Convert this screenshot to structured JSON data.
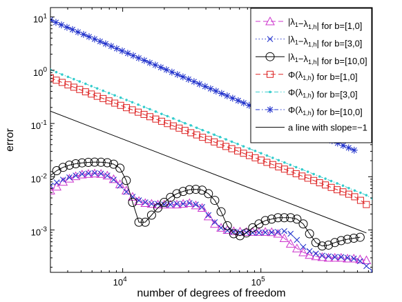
{
  "chart_data": {
    "type": "line",
    "title": "",
    "xlabel": "number of degrees of freedom",
    "ylabel": "error",
    "xscale": "log",
    "yscale": "log",
    "xlim": [
      3000,
      640000
    ],
    "ylim": [
      0.00016,
      15
    ],
    "x_ticks": [
      {
        "value": 10000,
        "base": "10",
        "exp": "4"
      },
      {
        "value": 100000,
        "base": "10",
        "exp": "5"
      }
    ],
    "y_ticks": [
      {
        "value": 0.001,
        "base": "10",
        "exp": "-3"
      },
      {
        "value": 0.01,
        "base": "10",
        "exp": "-2"
      },
      {
        "value": 0.1,
        "base": "10",
        "exp": "-1"
      },
      {
        "value": 1,
        "base": "10",
        "exp": "0"
      },
      {
        "value": 10,
        "base": "10",
        "exp": "1"
      }
    ],
    "grid": false,
    "legend_position": "top-right",
    "series": [
      {
        "name": "|λ1−λ1,h| for b=[1,0]",
        "label": {
          "pre": "|λ",
          "s1": "1",
          "mid": "−λ",
          "s2": "1,h",
          "post": "| for b=[1,0]"
        },
        "color": "#cc33cc",
        "marker": "triangle",
        "line": "dashed",
        "x": [
          3000,
          3333,
          3704,
          4115,
          4572,
          5080,
          5644,
          6271,
          6967,
          7741,
          8601,
          9556,
          10617,
          11796,
          13106,
          14561,
          16178,
          17975,
          19971,
          22188,
          24652,
          27389,
          30430,
          33809,
          37563,
          41734,
          46368,
          51516,
          57237,
          63592,
          70653,
          78498,
          87214,
          96898,
          107657,
          119611,
          132892,
          147648,
          164042,
          182256,
          202494,
          224978,
          249958,
          277712,
          308549,
          342810,
          380874,
          423166,
          470153,
          522357,
          580357
        ],
        "y": [
          0.0055,
          0.0065,
          0.008,
          0.0092,
          0.0102,
          0.011,
          0.0113,
          0.0115,
          0.0113,
          0.0105,
          0.009,
          0.0072,
          0.0055,
          0.0042,
          0.0035,
          0.0032,
          0.0031,
          0.003,
          0.003,
          0.003,
          0.003,
          0.0031,
          0.0032,
          0.0029,
          0.0026,
          0.0018,
          0.0013,
          0.0011,
          0.001,
          0.00095,
          0.00093,
          0.00092,
          0.00092,
          0.00092,
          0.00092,
          0.00091,
          0.00085,
          0.0007,
          0.00055,
          0.00045,
          0.00038,
          0.00034,
          0.00032,
          0.00031,
          0.0003,
          0.0003,
          0.0003,
          0.00029,
          0.00029,
          0.00028,
          0.00027
        ]
      },
      {
        "name": "|λ1−λ1,h| for b=[3,0]",
        "label": {
          "pre": "|λ",
          "s1": "1",
          "mid": "−λ",
          "s2": "1,h",
          "post": "| for b=[3,0]"
        },
        "color": "#2233cc",
        "marker": "x",
        "line": "dotted",
        "x": [
          3000,
          3333,
          3704,
          4115,
          4572,
          5080,
          5644,
          6271,
          6967,
          7741,
          8601,
          9556,
          10617,
          11796,
          13106,
          14561,
          16178,
          17975,
          19971,
          22188,
          24652,
          27389,
          30430,
          33809,
          37563,
          41734,
          46368,
          51516,
          57237,
          63592,
          70653,
          78498,
          87214,
          96898,
          107657,
          119611,
          132892,
          147648,
          164042,
          182256,
          202494,
          224978,
          249958,
          277712,
          308549,
          342810,
          380874,
          423166,
          470153,
          522357,
          580357,
          640000
        ],
        "y": [
          0.0068,
          0.0078,
          0.0088,
          0.0097,
          0.0105,
          0.0112,
          0.0115,
          0.0117,
          0.0114,
          0.0105,
          0.0088,
          0.0068,
          0.0052,
          0.0042,
          0.0036,
          0.0033,
          0.0031,
          0.0031,
          0.003,
          0.003,
          0.0031,
          0.0031,
          0.0032,
          0.003,
          0.0027,
          0.0019,
          0.0014,
          0.0011,
          0.00098,
          0.00093,
          0.0009,
          0.0009,
          0.00089,
          0.00089,
          0.0009,
          0.0009,
          0.00092,
          0.00095,
          0.00085,
          0.00065,
          0.00048,
          0.0004,
          0.00036,
          0.00033,
          0.00032,
          0.00031,
          0.00031,
          0.0003,
          0.00029,
          0.00026,
          0.00021,
          0.00017
        ]
      },
      {
        "name": "|λ1−λ1,h| for b=[10,0]",
        "label": {
          "pre": "|λ",
          "s1": "1",
          "mid": "−λ",
          "s2": "1,h",
          "post": "| for b=[10,0]"
        },
        "color": "#000000",
        "marker": "circle",
        "line": "solid",
        "x": [
          3000,
          3333,
          3704,
          4115,
          4572,
          5080,
          5644,
          6271,
          6967,
          7741,
          8601,
          9556,
          10617,
          11796,
          13106,
          14561,
          16178,
          17975,
          19971,
          22188,
          24652,
          27389,
          30430,
          33809,
          37563,
          41734,
          46368,
          51516,
          57237,
          63592,
          70653,
          78498,
          87214,
          96898,
          107657,
          119611,
          132892,
          147648,
          164042,
          182256,
          202494,
          224978,
          249958,
          277712,
          308549,
          342810,
          380874,
          423166,
          470153,
          522357
        ],
        "y": [
          0.0105,
          0.013,
          0.015,
          0.0165,
          0.0175,
          0.0182,
          0.0186,
          0.0188,
          0.0187,
          0.0183,
          0.0172,
          0.0145,
          0.0085,
          0.0033,
          0.0014,
          0.0014,
          0.0019,
          0.0026,
          0.0033,
          0.0041,
          0.0048,
          0.0053,
          0.0057,
          0.0058,
          0.0056,
          0.0048,
          0.0036,
          0.0022,
          0.0012,
          0.00085,
          0.00078,
          0.00088,
          0.0011,
          0.0013,
          0.0015,
          0.0016,
          0.0017,
          0.0017,
          0.0017,
          0.0016,
          0.0013,
          0.00085,
          0.00058,
          0.0005,
          0.00052,
          0.00058,
          0.00063,
          0.00067,
          0.0007,
          0.00073
        ]
      },
      {
        "name": "Φ(λ1,h) for b=[1,0]",
        "label": {
          "pre": "Φ(λ",
          "s1": "",
          "mid": "",
          "s2": "1,h",
          "post": ") for b=[1,0]"
        },
        "color": "#dd2222",
        "marker": "square",
        "line": "dashed",
        "x": [
          3000,
          3307,
          3646,
          4019,
          4430,
          4884,
          5384,
          5935,
          6543,
          7213,
          7951,
          8765,
          9663,
          10652,
          11743,
          12945,
          14270,
          15731,
          17342,
          19117,
          21075,
          23233,
          25611,
          28234,
          31124,
          34311,
          37824,
          41697,
          45966,
          50672,
          55861,
          61581,
          67886,
          74837,
          82500,
          90947,
          100259,
          110524,
          121841,
          134316,
          148069,
          163230,
          179943,
          198367,
          218678,
          241069,
          265753,
          292964,
          322960,
          356028,
          392481,
          432667,
          476968,
          525805,
          579643
        ],
        "y": [
          0.72,
          0.65,
          0.59,
          0.53,
          0.48,
          0.435,
          0.393,
          0.357,
          0.324,
          0.294,
          0.266,
          0.241,
          0.219,
          0.198,
          0.18,
          0.163,
          0.148,
          0.134,
          0.121,
          0.11,
          0.0995,
          0.09,
          0.0818,
          0.074,
          0.067,
          0.061,
          0.055,
          0.05,
          0.045,
          0.041,
          0.037,
          0.0336,
          0.0305,
          0.0276,
          0.025,
          0.0227,
          0.0205,
          0.0186,
          0.0169,
          0.0153,
          0.0139,
          0.0126,
          0.0114,
          0.0103,
          0.0094,
          0.0085,
          0.0077,
          0.007,
          0.0063,
          0.0057,
          0.0052,
          0.0047,
          0.0042,
          0.0036,
          0.003
        ]
      },
      {
        "name": "Φ(λ1,h) for b=[3,0]",
        "label": {
          "pre": "Φ(λ",
          "s1": "",
          "mid": "",
          "s2": "1,h",
          "post": ") for b=[3,0]"
        },
        "color": "#33cccc",
        "marker": "dot",
        "line": "dashdot",
        "x": [
          3000,
          3307,
          3646,
          4019,
          4430,
          4884,
          5384,
          5935,
          6543,
          7213,
          7951,
          8765,
          9663,
          10652,
          11743,
          12945,
          14270,
          15731,
          17342,
          19117,
          21075,
          23233,
          25611,
          28234,
          31124,
          34311,
          37824,
          41697,
          45966,
          50672,
          55861,
          61581,
          67886,
          74837,
          82500,
          90947,
          100259,
          110524,
          121841,
          134316,
          148069,
          163230,
          179943,
          198367,
          218678,
          241069,
          265753,
          292964,
          322960,
          356028,
          392481,
          432667,
          476968,
          525805,
          579643,
          640000
        ],
        "y": [
          1.02,
          0.92,
          0.83,
          0.75,
          0.68,
          0.615,
          0.556,
          0.503,
          0.455,
          0.412,
          0.372,
          0.337,
          0.305,
          0.276,
          0.25,
          0.226,
          0.204,
          0.185,
          0.167,
          0.151,
          0.137,
          0.124,
          0.112,
          0.101,
          0.092,
          0.083,
          0.075,
          0.068,
          0.0615,
          0.0556,
          0.0503,
          0.0455,
          0.0412,
          0.0372,
          0.0337,
          0.0305,
          0.0276,
          0.025,
          0.0226,
          0.0204,
          0.0185,
          0.0167,
          0.0151,
          0.0137,
          0.0124,
          0.0112,
          0.0101,
          0.0092,
          0.0083,
          0.0075,
          0.0068,
          0.0061,
          0.0055,
          0.005,
          0.0045,
          0.0039
        ]
      },
      {
        "name": "Φ(λ1,h) for b=[10,0]",
        "label": {
          "pre": "Φ(λ",
          "s1": "",
          "mid": "",
          "s2": "1,h",
          "post": ") for b=[10,0]"
        },
        "color": "#2233cc",
        "marker": "star",
        "line": "dashdot",
        "x": [
          3000,
          3289,
          3606,
          3953,
          4334,
          4752,
          5210,
          5712,
          6262,
          6866,
          7528,
          8253,
          9049,
          9921,
          10877,
          11926,
          13075,
          14335,
          15717,
          17232,
          18893,
          20714,
          22710,
          24899,
          27299,
          29930,
          32815,
          35978,
          39446,
          43248,
          47417,
          51987,
          56998,
          62492,
          68516,
          75120,
          82361,
          90299,
          99003,
          108545,
          119008,
          130479,
          143055,
          156844,
          171961,
          188536,
          206708,
          226632,
          248477,
          272427,
          298686,
          327476,
          359040,
          393647,
          431589,
          473188
        ],
        "y": [
          8.8,
          7.9,
          7.1,
          6.4,
          5.8,
          5.2,
          4.7,
          4.25,
          3.85,
          3.47,
          3.13,
          2.83,
          2.55,
          2.3,
          2.08,
          1.88,
          1.69,
          1.53,
          1.38,
          1.25,
          1.13,
          1.02,
          0.92,
          0.83,
          0.75,
          0.676,
          0.61,
          0.55,
          0.497,
          0.449,
          0.405,
          0.366,
          0.33,
          0.298,
          0.269,
          0.243,
          0.219,
          0.198,
          0.179,
          0.161,
          0.146,
          0.132,
          0.119,
          0.107,
          0.097,
          0.0875,
          0.079,
          0.0713,
          0.0644,
          0.0581,
          0.0525,
          0.0474,
          0.0428,
          0.0386,
          0.0349,
          0.0315
        ]
      },
      {
        "name": "a line with slope=−1",
        "label": {
          "pre": "a line with slope=−1",
          "s1": "",
          "mid": "",
          "s2": "",
          "post": ""
        },
        "color": "#000000",
        "marker": "none",
        "line": "solid",
        "x": [
          3000,
          580000
        ],
        "y": [
          0.17,
          0.00088
        ]
      }
    ]
  }
}
